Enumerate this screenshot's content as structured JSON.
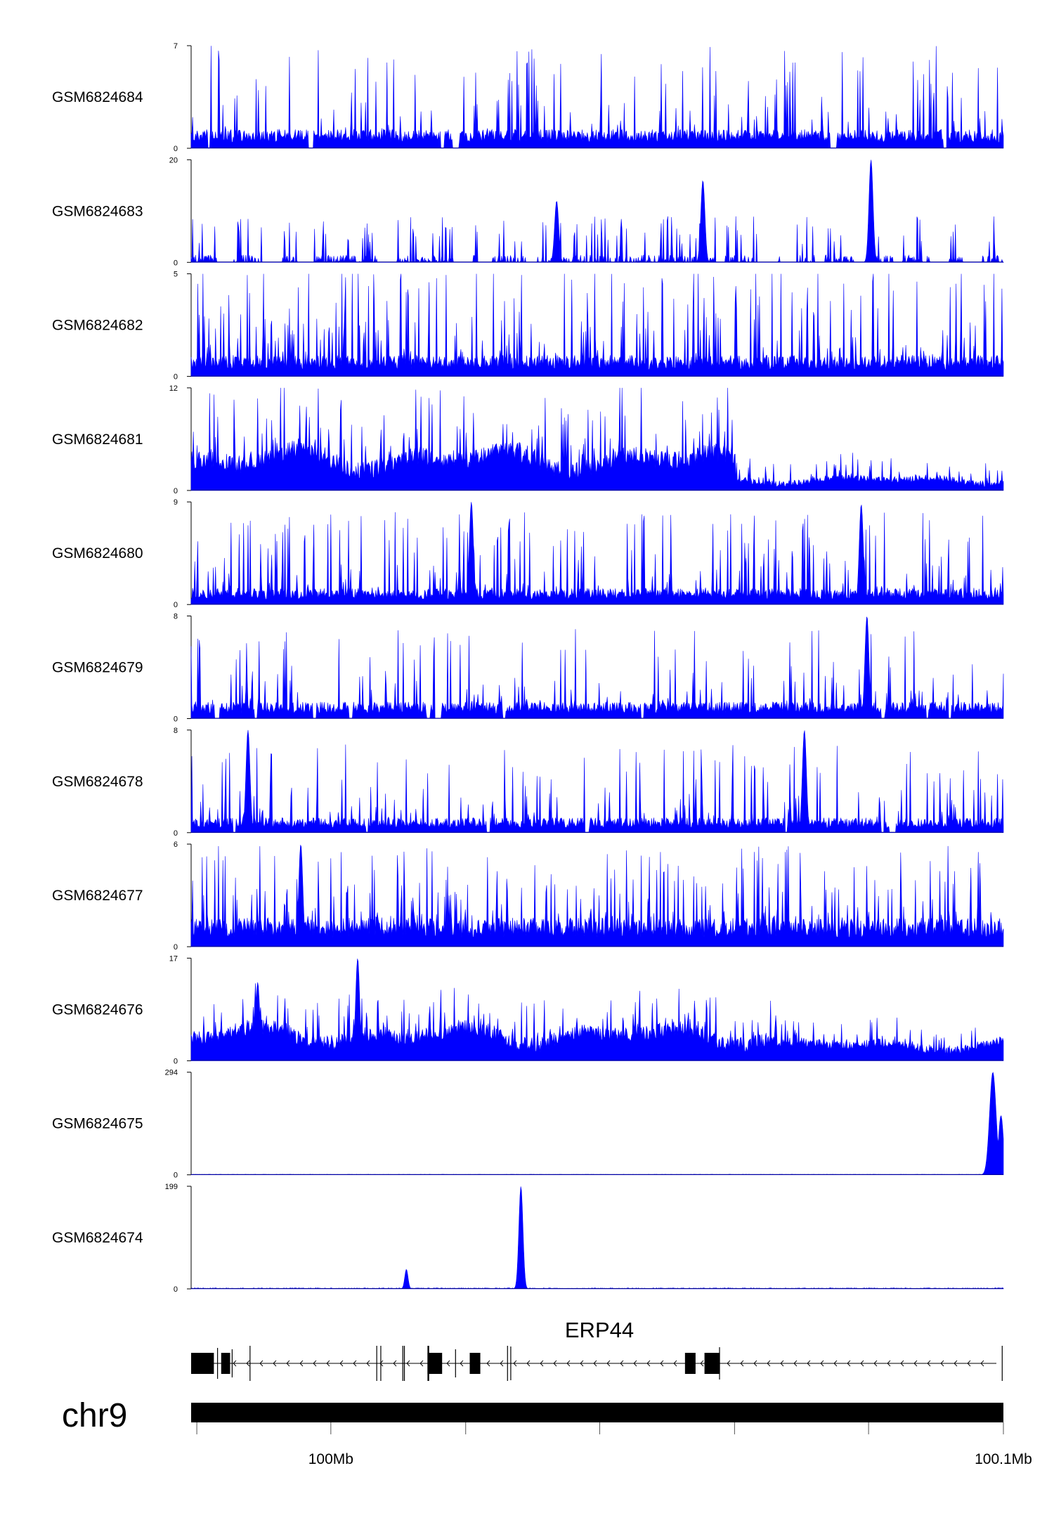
{
  "chart_data": {
    "type": "area",
    "colors": {
      "signal": "#0000ff",
      "outline": "#00008b",
      "axis": "#000000",
      "gene": "#000000"
    },
    "tracks": [
      {
        "label": "GSM6824684",
        "ymin": 0,
        "ymax": 7,
        "pattern": "spiky_gappy",
        "baseline": 1.0,
        "spike": 6.0
      },
      {
        "label": "GSM6824683",
        "ymin": 0,
        "ymax": 20,
        "pattern": "sparse",
        "baseline": 0.6,
        "spike": 9.0,
        "peaks": [
          {
            "x": 0.837,
            "y": 20
          },
          {
            "x": 0.45,
            "y": 12
          },
          {
            "x": 0.63,
            "y": 16
          }
        ]
      },
      {
        "label": "GSM6824682",
        "ymin": 0,
        "ymax": 5,
        "pattern": "dense",
        "baseline": 0.8,
        "spike": 4.8
      },
      {
        "label": "GSM6824681",
        "ymin": 0,
        "ymax": 12,
        "pattern": "regional",
        "baseline": 2.5,
        "spike": 8.5,
        "regions": [
          [
            0.0,
            0.67,
            1.0
          ],
          [
            0.67,
            1.0,
            0.35
          ]
        ]
      },
      {
        "label": "GSM6824680",
        "ymin": 0,
        "ymax": 9,
        "pattern": "dense",
        "baseline": 1.1,
        "spike": 7.0,
        "peaks": [
          {
            "x": 0.345,
            "y": 9
          },
          {
            "x": 0.825,
            "y": 8.8
          }
        ]
      },
      {
        "label": "GSM6824679",
        "ymin": 0,
        "ymax": 8,
        "pattern": "spiky_gappy",
        "baseline": 1.0,
        "spike": 6.0,
        "peaks": [
          {
            "x": 0.832,
            "y": 8
          }
        ]
      },
      {
        "label": "GSM6824678",
        "ymin": 0,
        "ymax": 8,
        "pattern": "spiky_gappy",
        "baseline": 0.9,
        "spike": 6.0,
        "peaks": [
          {
            "x": 0.07,
            "y": 8
          },
          {
            "x": 0.755,
            "y": 8
          }
        ]
      },
      {
        "label": "GSM6824677",
        "ymin": 0,
        "ymax": 6,
        "pattern": "dense",
        "baseline": 1.3,
        "spike": 4.6,
        "peaks": [
          {
            "x": 0.135,
            "y": 6
          }
        ]
      },
      {
        "label": "GSM6824676",
        "ymin": 0,
        "ymax": 17,
        "pattern": "regional",
        "baseline": 3.0,
        "spike": 7.0,
        "regions": [
          [
            0.0,
            0.72,
            1.0
          ],
          [
            0.72,
            1.0,
            0.6
          ]
        ],
        "peaks": [
          {
            "x": 0.205,
            "y": 17
          },
          {
            "x": 0.082,
            "y": 13
          }
        ]
      },
      {
        "label": "GSM6824675",
        "ymin": 0,
        "ymax": 294,
        "pattern": "flat",
        "baseline": 1.5,
        "spike": 0,
        "peaks": [
          {
            "x": 0.987,
            "y": 294,
            "width": 0.004
          },
          {
            "x": 0.997,
            "y": 170,
            "width": 0.003
          }
        ]
      },
      {
        "label": "GSM6824674",
        "ymin": 0,
        "ymax": 199,
        "pattern": "flat",
        "baseline": 2.0,
        "spike": 0,
        "peaks": [
          {
            "x": 0.406,
            "y": 199,
            "width": 0.0025
          },
          {
            "x": 0.265,
            "y": 38,
            "width": 0.002
          }
        ]
      }
    ],
    "gene": {
      "name": "ERP44",
      "strand": "-",
      "exons": [
        [
          0.0,
          0.028
        ],
        [
          0.037,
          0.048
        ],
        [
          0.072,
          0.073
        ],
        [
          0.228,
          0.229
        ],
        [
          0.233,
          0.234
        ],
        [
          0.262,
          0.263
        ],
        [
          0.291,
          0.293
        ],
        [
          0.291,
          0.309
        ],
        [
          0.343,
          0.356
        ],
        [
          0.389,
          0.39
        ],
        [
          0.608,
          0.621
        ],
        [
          0.632,
          0.651
        ],
        [
          0.998,
          0.999
        ]
      ]
    },
    "chromosome": "chr9",
    "axis": {
      "ticks": [
        {
          "pos": 0.007,
          "label": ""
        },
        {
          "pos": 0.172,
          "label": "100Mb"
        },
        {
          "pos": 0.338,
          "label": ""
        },
        {
          "pos": 0.503,
          "label": ""
        },
        {
          "pos": 0.669,
          "label": ""
        },
        {
          "pos": 0.834,
          "label": ""
        },
        {
          "pos": 1.0,
          "label": "100.1Mb"
        }
      ]
    }
  }
}
